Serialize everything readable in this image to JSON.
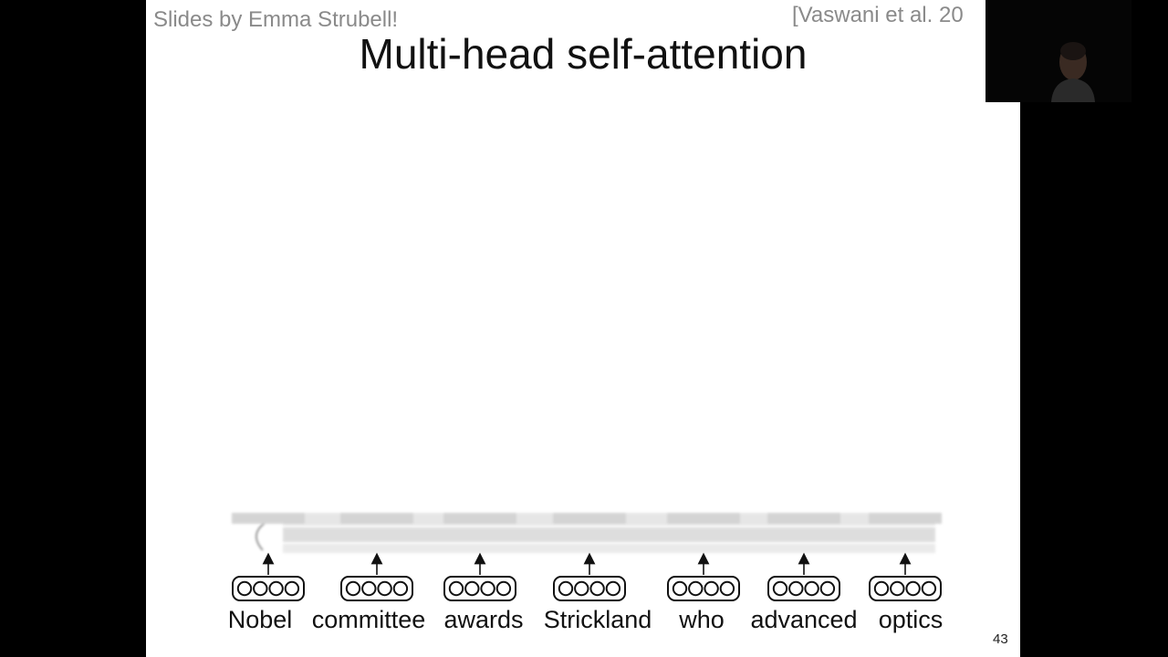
{
  "slide": {
    "credit": "Slides by Emma Strubell!",
    "citation": "[Vaswani et al. 20",
    "title": "Multi-head self-attention",
    "page_number": "43"
  },
  "tokens": [
    "Nobel",
    "committee",
    "awards",
    "Strickland",
    "who",
    "advanced",
    "optics"
  ],
  "colors": {
    "background": "#000000",
    "slide": "#ffffff",
    "credit_text": "#8a8a8a",
    "title_text": "#111111"
  }
}
